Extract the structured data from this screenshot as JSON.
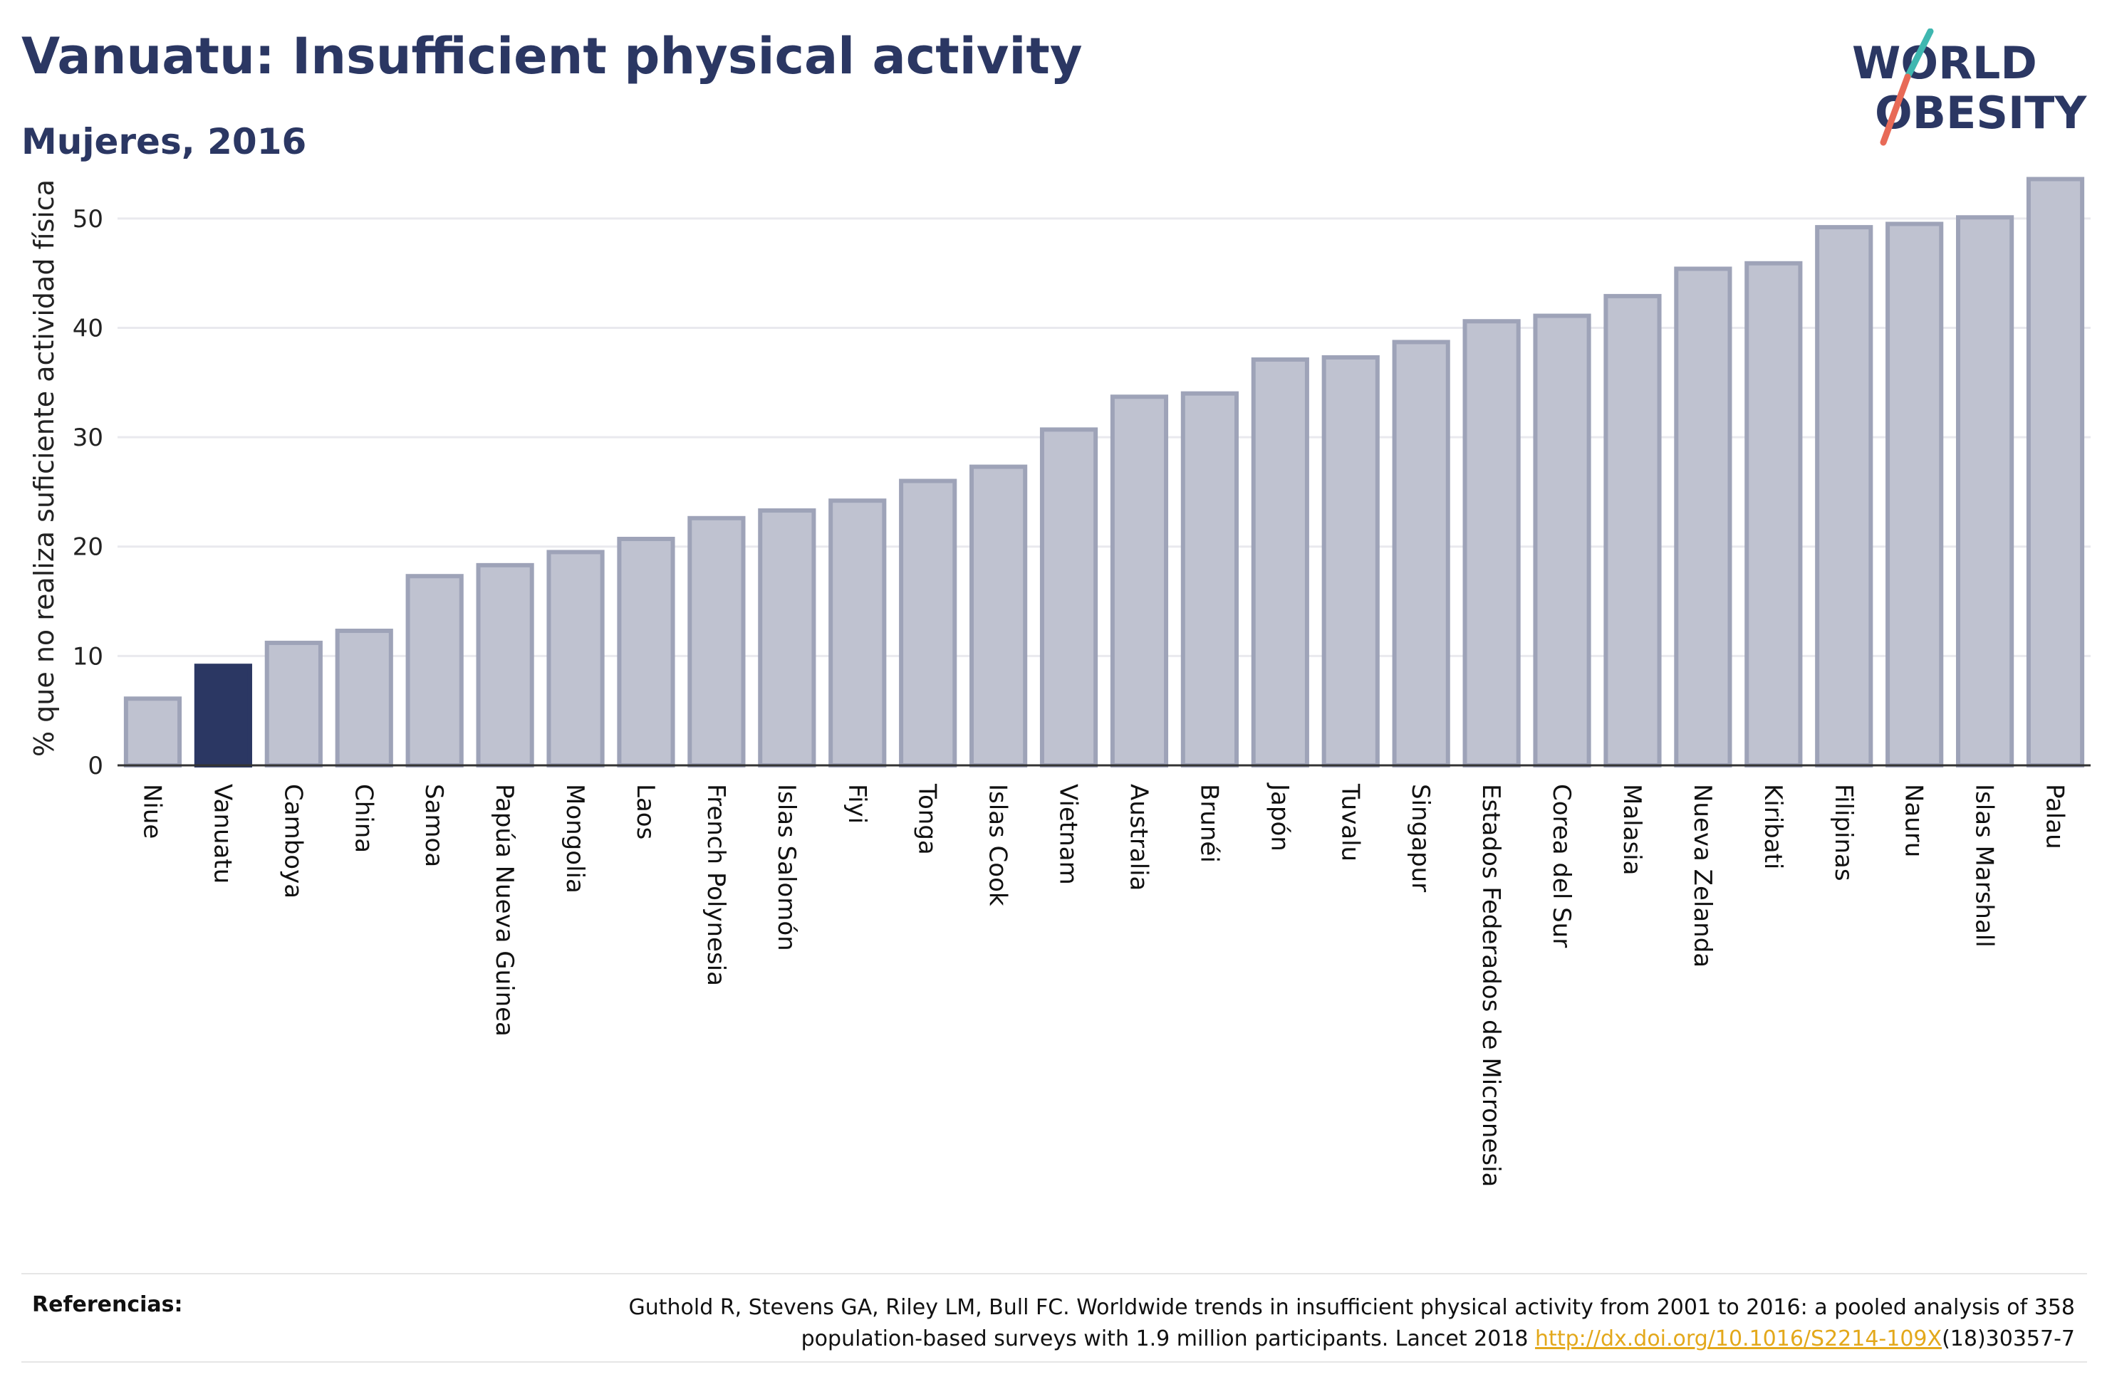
{
  "header": {
    "title": "Vanuatu: Insufficient physical activity",
    "subtitle": "Mujeres, 2016"
  },
  "logo": {
    "line1": "WORLD",
    "line2": "OBESITY",
    "colors": {
      "text": "#2b3763",
      "slash_teal": "#3fb7b0",
      "slash_coral": "#e86a57"
    }
  },
  "chart_data": {
    "type": "bar",
    "ylabel": "% que no realiza suficiente actividad física",
    "ylim": [
      0,
      55
    ],
    "yticks": [
      0,
      10,
      20,
      30,
      40,
      50
    ],
    "grid": true,
    "highlight": "Vanuatu",
    "categories": [
      "Niue",
      "Vanuatu",
      "Camboya",
      "China",
      "Samoa",
      "Papúa Nueva Guinea",
      "Mongolia",
      "Laos",
      "French Polynesia",
      "Islas Salomón",
      "Fiyi",
      "Tonga",
      "Islas Cook",
      "Vietnam",
      "Australia",
      "Brunéi",
      "Japón",
      "Tuvalu",
      "Singapur",
      "Estados Federados de Micronesia",
      "Corea del Sur",
      "Malasia",
      "Nueva Zelanda",
      "Kiribati",
      "Filipinas",
      "Nauru",
      "Islas Marshall",
      "Palau"
    ],
    "values": [
      6.1,
      9.1,
      11.2,
      12.3,
      17.3,
      18.3,
      19.5,
      20.7,
      22.6,
      23.3,
      24.2,
      26.0,
      27.3,
      30.7,
      33.7,
      34.0,
      37.1,
      37.3,
      38.7,
      40.6,
      41.1,
      42.9,
      45.4,
      45.9,
      49.2,
      49.5,
      50.1,
      53.6
    ],
    "colors": {
      "bar": "#bfc2d0",
      "bar_border": "#9ea3b8",
      "highlight": "#2b3763"
    }
  },
  "references": {
    "label": "Referencias:",
    "line1": "Guthold R, Stevens GA, Riley LM, Bull FC. Worldwide trends in insufficient physical activity from 2001 to 2016: a pooled analysis of 358",
    "line2_prefix": "population-based surveys with 1.9 million participants. Lancet 2018 ",
    "link": "http://dx.doi.org/10.1016/S2214-109X",
    "line2_suffix": "(18)30357-7"
  }
}
